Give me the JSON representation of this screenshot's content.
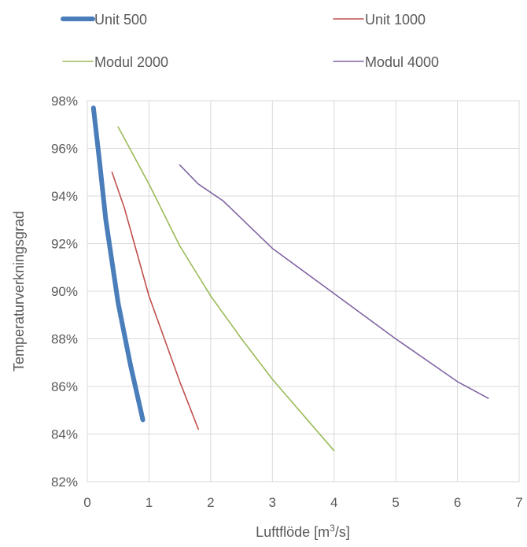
{
  "chart_data": {
    "type": "line",
    "title": "",
    "xlabel": "Luftflöde [m",
    "xlabel_sup": "3",
    "xlabel_suffix": "/s]",
    "ylabel": "Temperaturverkningsgrad",
    "xlim": [
      0,
      7
    ],
    "ylim": [
      82,
      98
    ],
    "x_ticks": [
      0,
      1,
      2,
      3,
      4,
      5,
      6,
      7
    ],
    "x_tick_labels": [
      "0",
      "1",
      "2",
      "3",
      "4",
      "5",
      "6",
      "7"
    ],
    "y_ticks": [
      82,
      84,
      86,
      88,
      90,
      92,
      94,
      96,
      98
    ],
    "y_tick_labels": [
      "82%",
      "84%",
      "86%",
      "88%",
      "90%",
      "92%",
      "94%",
      "96%",
      "98%"
    ],
    "grid": true,
    "legend_position": "top",
    "series": [
      {
        "name": "Unit 500",
        "color": "#4a7ebb",
        "width": "thick",
        "points": [
          [
            0.1,
            97.7
          ],
          [
            0.2,
            95.4
          ],
          [
            0.3,
            93.0
          ],
          [
            0.5,
            89.5
          ],
          [
            0.7,
            86.9
          ],
          [
            0.9,
            84.6
          ]
        ]
      },
      {
        "name": "Unit 1000",
        "color": "#c0504d",
        "width": "thin",
        "points": [
          [
            0.4,
            95.0
          ],
          [
            0.6,
            93.5
          ],
          [
            1.0,
            89.8
          ],
          [
            1.5,
            86.2
          ],
          [
            1.8,
            84.2
          ]
        ]
      },
      {
        "name": "Modul 2000",
        "color": "#9bbb59",
        "width": "thin",
        "points": [
          [
            0.5,
            96.9
          ],
          [
            1.0,
            94.5
          ],
          [
            1.5,
            91.9
          ],
          [
            2.0,
            89.8
          ],
          [
            2.5,
            88.0
          ],
          [
            3.0,
            86.3
          ],
          [
            3.5,
            84.8
          ],
          [
            4.0,
            83.3
          ]
        ]
      },
      {
        "name": "Modul 4000",
        "color": "#8064a2",
        "width": "thin",
        "points": [
          [
            1.5,
            95.3
          ],
          [
            1.8,
            94.5
          ],
          [
            2.2,
            93.8
          ],
          [
            3.0,
            91.8
          ],
          [
            4.0,
            89.9
          ],
          [
            5.0,
            88.0
          ],
          [
            6.0,
            86.2
          ],
          [
            6.5,
            85.5
          ]
        ]
      }
    ]
  }
}
